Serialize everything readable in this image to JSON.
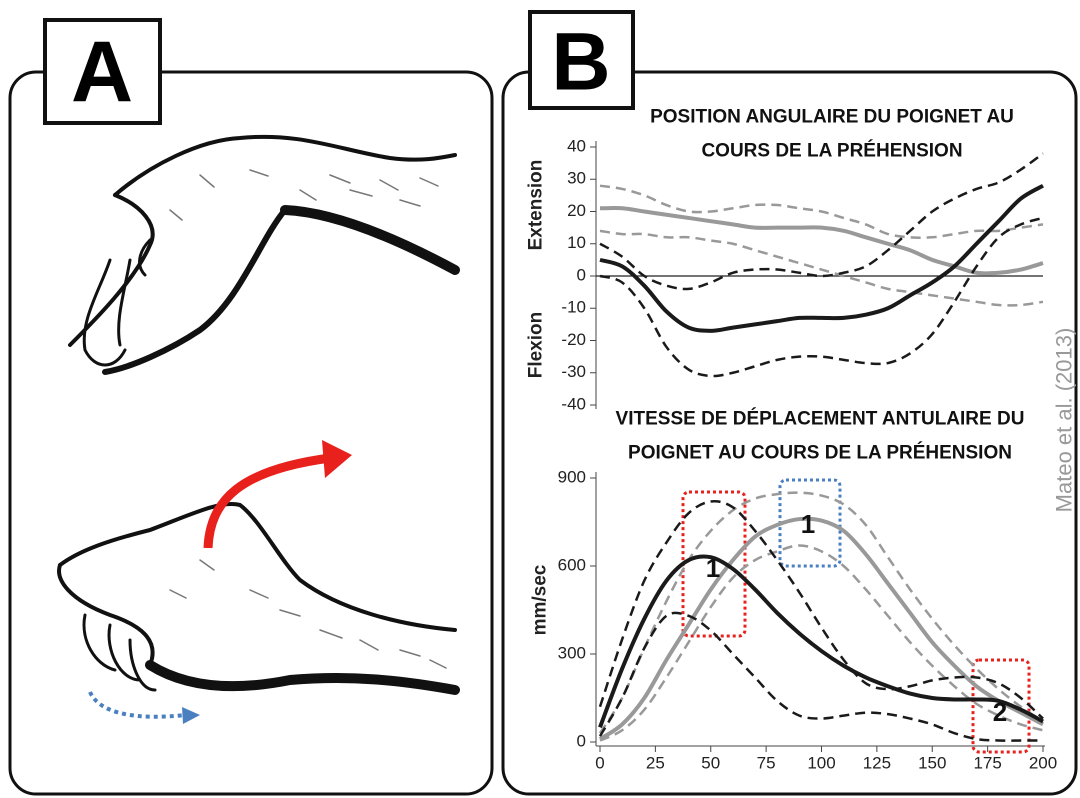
{
  "panel_labels": [
    "A",
    "B"
  ],
  "credit": "Mateo et al. (2013)",
  "chart_data": [
    {
      "type": "line",
      "title": [
        "POSITION ANGULAIRE DU POIGNET AU",
        "COURS DE LA PRÉHENSION"
      ],
      "y_labels": [
        "Extension",
        "Flexion"
      ],
      "x": [
        0,
        10,
        20,
        30,
        40,
        50,
        60,
        70,
        80,
        90,
        100,
        110,
        120,
        130,
        140,
        150,
        160,
        170,
        180,
        190,
        200
      ],
      "xlim": [
        0,
        200
      ],
      "ylim": [
        -40,
        40
      ],
      "yticks": [
        -40,
        -30,
        -20,
        -10,
        0,
        10,
        20,
        30,
        40
      ],
      "zero_line": true,
      "series": [
        {
          "color": "#999999",
          "style": "dashed",
          "values": [
            28,
            27,
            25,
            22,
            20,
            20,
            21,
            22,
            22,
            21,
            20,
            18,
            16,
            13,
            12,
            12,
            13,
            14,
            14,
            15,
            16
          ]
        },
        {
          "color": "#999999",
          "style": "dashed",
          "values": [
            14,
            13,
            13,
            12,
            12,
            11,
            10,
            8,
            6,
            4,
            2,
            0,
            -2,
            -4,
            -5,
            -6,
            -7,
            -8,
            -9,
            -9,
            -8
          ]
        },
        {
          "color": "#999999",
          "style": "solid",
          "values": [
            21,
            21,
            20,
            19,
            18,
            17,
            16,
            15,
            15,
            15,
            15,
            14,
            12,
            10,
            8,
            5,
            3,
            1,
            1,
            2,
            4
          ]
        },
        {
          "color": "#1a1a1a",
          "style": "dashed",
          "values": [
            10,
            6,
            0,
            -3,
            -4,
            -2,
            1,
            2,
            2,
            1,
            0,
            1,
            3,
            8,
            14,
            20,
            24,
            27,
            29,
            33,
            38
          ]
        },
        {
          "color": "#1a1a1a",
          "style": "dashed",
          "values": [
            0,
            -2,
            -10,
            -22,
            -29,
            -31,
            -30,
            -28,
            -26,
            -25,
            -25,
            -26,
            -27,
            -27,
            -24,
            -18,
            -8,
            3,
            12,
            16,
            18
          ]
        },
        {
          "color": "#1a1a1a",
          "style": "solid",
          "values": [
            5,
            3,
            -3,
            -11,
            -16,
            -17,
            -16,
            -15,
            -14,
            -13,
            -13,
            -13,
            -12,
            -10,
            -6,
            -2,
            3,
            10,
            17,
            24,
            28
          ]
        }
      ]
    },
    {
      "type": "line",
      "title": [
        "VITESSE DE DÉPLACEMENT ANTULAIRE DU",
        "POIGNET AU COURS DE LA PRÉHENSION"
      ],
      "y_labels": [
        "mm/sec"
      ],
      "x": [
        0,
        10,
        20,
        30,
        40,
        50,
        60,
        70,
        80,
        90,
        100,
        110,
        120,
        130,
        140,
        150,
        160,
        170,
        180,
        190,
        200
      ],
      "xlim": [
        0,
        200
      ],
      "xticks": [
        0,
        25,
        50,
        75,
        100,
        125,
        150,
        175,
        200
      ],
      "ylim": [
        0,
        900
      ],
      "yticks": [
        0,
        300,
        600,
        900
      ],
      "annotations": [
        "1",
        "1",
        "2"
      ],
      "series": [
        {
          "color": "#999999",
          "style": "dashed",
          "values": [
            30,
            150,
            320,
            480,
            620,
            720,
            790,
            830,
            845,
            850,
            840,
            810,
            740,
            630,
            520,
            420,
            330,
            250,
            180,
            120,
            70
          ]
        },
        {
          "color": "#999999",
          "style": "dashed",
          "values": [
            5,
            40,
            110,
            220,
            340,
            460,
            560,
            620,
            650,
            670,
            650,
            600,
            520,
            430,
            340,
            260,
            190,
            130,
            90,
            60,
            40
          ]
        },
        {
          "color": "#999999",
          "style": "solid",
          "values": [
            10,
            60,
            150,
            280,
            400,
            520,
            620,
            700,
            740,
            760,
            755,
            720,
            640,
            540,
            440,
            340,
            260,
            190,
            140,
            100,
            60
          ]
        },
        {
          "color": "#1a1a1a",
          "style": "dashed",
          "values": [
            120,
            350,
            550,
            680,
            780,
            820,
            800,
            720,
            620,
            510,
            390,
            280,
            200,
            180,
            190,
            210,
            220,
            220,
            200,
            150,
            80
          ]
        },
        {
          "color": "#1a1a1a",
          "style": "dashed",
          "values": [
            20,
            150,
            320,
            430,
            430,
            380,
            300,
            220,
            140,
            90,
            80,
            90,
            100,
            95,
            80,
            60,
            30,
            10,
            5,
            5,
            5
          ]
        },
        {
          "color": "#1a1a1a",
          "style": "solid",
          "values": [
            50,
            250,
            420,
            550,
            620,
            630,
            590,
            520,
            440,
            370,
            310,
            260,
            220,
            190,
            165,
            150,
            145,
            145,
            140,
            110,
            70
          ]
        }
      ]
    }
  ]
}
